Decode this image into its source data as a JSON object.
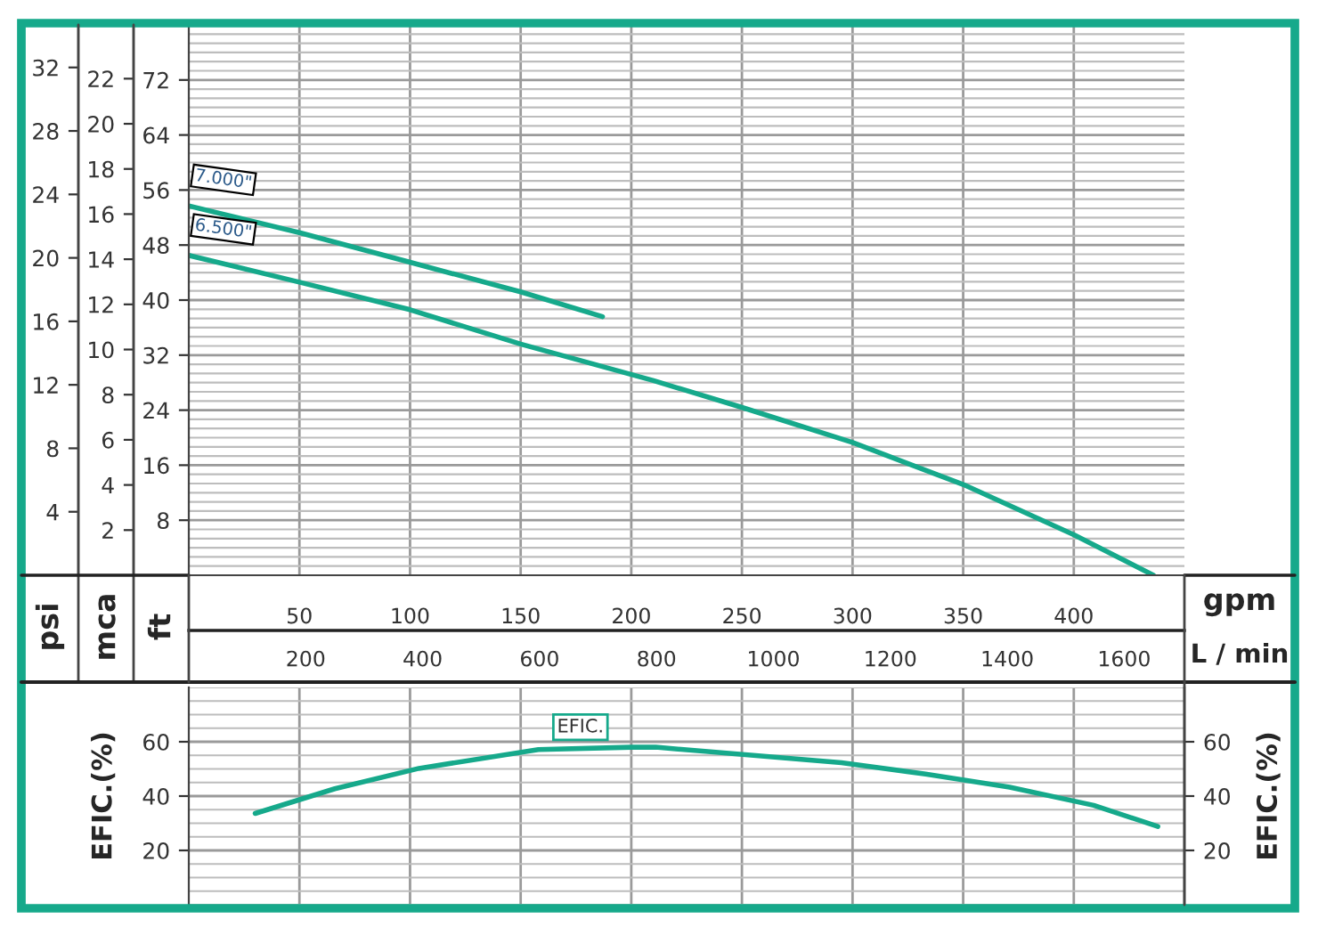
{
  "chart_data": [
    {
      "type": "line",
      "xlabel": "gpm",
      "x2label": "L / min",
      "ylabel": "ft",
      "y2label": "mca",
      "y3label": "psi",
      "xlim": [
        0,
        450
      ],
      "xticks": [
        50,
        100,
        150,
        200,
        250,
        300,
        350,
        400
      ],
      "x2lim": [
        0,
        1703
      ],
      "x2ticks": [
        200,
        400,
        600,
        800,
        1000,
        1200,
        1400,
        1600
      ],
      "ylim": [
        0,
        80
      ],
      "yticks": [
        8,
        16,
        24,
        32,
        40,
        48,
        56,
        64,
        72
      ],
      "y2lim": [
        0,
        24.38
      ],
      "y2ticks": [
        2,
        4,
        6,
        8,
        10,
        12,
        14,
        16,
        18,
        20,
        22
      ],
      "y3lim": [
        0,
        34.68
      ],
      "y3ticks": [
        4,
        8,
        12,
        16,
        20,
        24,
        28,
        32
      ],
      "grid": true,
      "legend": false,
      "line_style": "solid",
      "marker": "none",
      "series": [
        {
          "name": "7.000\"",
          "color": "#16a98b",
          "x": [
            0,
            50,
            100,
            150,
            187
          ],
          "values": [
            53.7,
            49.8,
            45.5,
            41.2,
            37.6
          ]
        },
        {
          "name": "6.500\"",
          "color": "#16a98b",
          "x": [
            0,
            50,
            100,
            150,
            210,
            250,
            300,
            350,
            400,
            436
          ],
          "values": [
            46.5,
            42.6,
            38.6,
            33.6,
            28.3,
            24.4,
            19.3,
            13.2,
            5.9,
            0
          ]
        }
      ]
    },
    {
      "type": "line",
      "ylabel": "EFIC.(%)",
      "y2label": "EFIC.(%)",
      "tick_labels": "y",
      "xlim": [
        0,
        450
      ],
      "ylim": [
        0,
        80
      ],
      "yticks": [
        20,
        40,
        60
      ],
      "y2lim": [
        0,
        80
      ],
      "y2ticks": [
        20,
        40,
        60
      ],
      "grid": true,
      "legend": false,
      "line_style": "solid",
      "marker": "none",
      "series": [
        {
          "name": "EFIC.",
          "color": "#16a98b",
          "x": [
            30,
            66,
            104,
            158,
            200,
            211,
            295,
            333,
            371,
            409,
            438
          ],
          "values": [
            33.6,
            42.7,
            50.2,
            57.1,
            58,
            58,
            52.3,
            48.1,
            43.3,
            36.6,
            28.8
          ]
        }
      ]
    }
  ]
}
